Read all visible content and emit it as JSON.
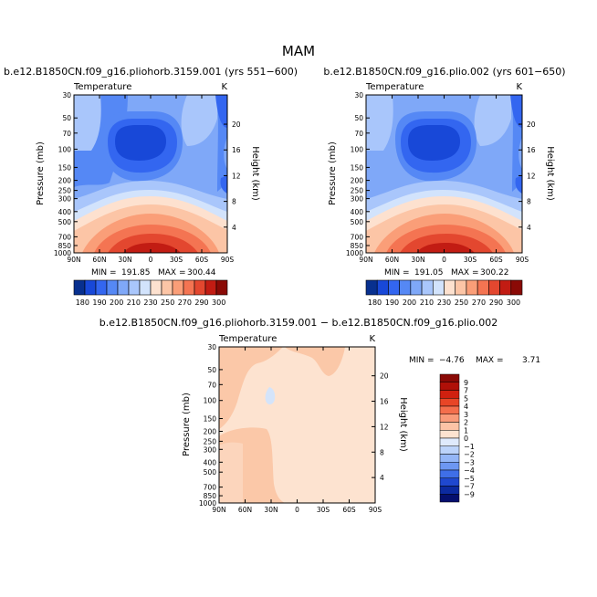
{
  "figure_title": "MAM",
  "colors": {
    "cool": [
      "#08308f",
      "#1848d8",
      "#3366f0",
      "#5588f5",
      "#7fa8f8",
      "#a9c6fb",
      "#d2e3fc"
    ],
    "warm": [
      "#fde1cf",
      "#fcc5a6",
      "#fa9e78",
      "#f47452",
      "#e3472f",
      "#c21c13",
      "#8a0a06"
    ],
    "diff_pos": [
      "#fdd8c2",
      "#fbbf9f"
    ],
    "diff_neg": [
      "#d4e4fa"
    ]
  },
  "chart_data": [
    {
      "type": "heatmap",
      "name": "panel-left",
      "title": "b.e12.B1850CN.f09_g16.pliohorb.3159.001 (yrs 551−600)",
      "variable_label": "Temperature",
      "units": "K",
      "ylabel": "Pressure (mb)",
      "right_ylabel": "Height (km)",
      "x_ticks": [
        "90N",
        "60N",
        "30N",
        "0",
        "30S",
        "60S",
        "90S"
      ],
      "y_ticks": [
        "30",
        "50",
        "70",
        "100",
        "150",
        "200",
        "250",
        "300",
        "400",
        "500",
        "700",
        "850",
        "1000"
      ],
      "right_y_ticks": [
        "20",
        "16",
        "12",
        "8",
        "4"
      ],
      "stats": {
        "min_label": "MIN =",
        "min": "191.85",
        "max_label": "MAX =",
        "max": "300.44"
      },
      "colorbar_labels": [
        "180",
        "190",
        "200",
        "210",
        "230",
        "250",
        "270",
        "290",
        "300"
      ]
    },
    {
      "type": "heatmap",
      "name": "panel-right",
      "title": "b.e12.B1850CN.f09_g16.plio.002 (yrs 601−650)",
      "variable_label": "Temperature",
      "units": "K",
      "ylabel": "Pressure (mb)",
      "right_ylabel": "Height (km)",
      "x_ticks": [
        "90N",
        "60N",
        "30N",
        "0",
        "30S",
        "60S",
        "90S"
      ],
      "y_ticks": [
        "30",
        "50",
        "70",
        "100",
        "150",
        "200",
        "250",
        "300",
        "400",
        "500",
        "700",
        "850",
        "1000"
      ],
      "right_y_ticks": [
        "20",
        "16",
        "12",
        "8",
        "4"
      ],
      "stats": {
        "min_label": "MIN =",
        "min": "191.05",
        "max_label": "MAX =",
        "max": "300.22"
      }
    },
    {
      "type": "heatmap",
      "name": "panel-diff",
      "title": "b.e12.B1850CN.f09_g16.pliohorb.3159.001 − b.e12.B1850CN.f09_g16.plio.002",
      "variable_label": "Temperature",
      "units": "K",
      "ylabel": "Pressure (mb)",
      "right_ylabel": "Height (km)",
      "x_ticks": [
        "90N",
        "60N",
        "30N",
        "0",
        "30S",
        "60S",
        "90S"
      ],
      "y_ticks": [
        "30",
        "50",
        "70",
        "100",
        "150",
        "200",
        "250",
        "300",
        "400",
        "500",
        "700",
        "850",
        "1000"
      ],
      "right_y_ticks": [
        "20",
        "16",
        "12",
        "8",
        "4"
      ],
      "stats": {
        "min_label": "MIN =",
        "min": "−4.76",
        "max_label": "MAX =",
        "max": "3.71"
      },
      "colorbar_labels": [
        "9",
        "7",
        "5",
        "4",
        "3",
        "2",
        "1",
        "0",
        "−1",
        "−2",
        "−3",
        "−4",
        "−5",
        "−7",
        "−9"
      ]
    }
  ]
}
